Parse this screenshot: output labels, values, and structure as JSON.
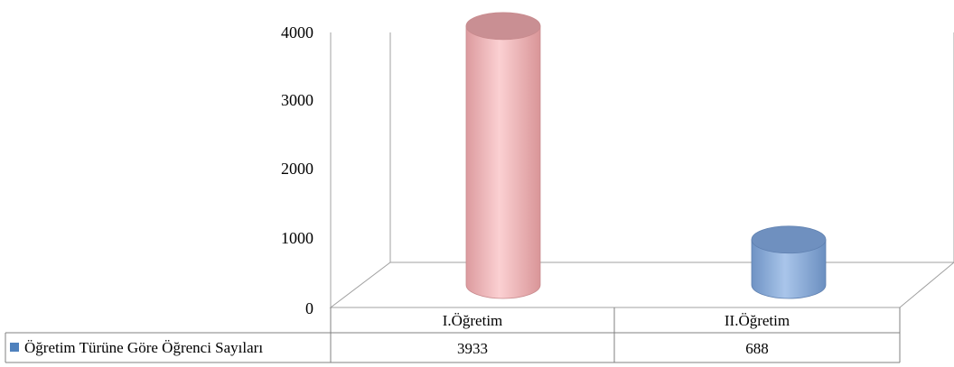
{
  "chart_data": {
    "type": "bar",
    "categories": [
      "I.Öğretim",
      "II.Öğretim"
    ],
    "series": [
      {
        "name": "Öğretim Türüne Göre Öğrenci Sayıları",
        "values": [
          3933,
          688
        ]
      }
    ],
    "yticks": [
      "0",
      "1000",
      "2000",
      "3000",
      "4000"
    ],
    "ylim": [
      0,
      4000
    ],
    "title": "",
    "xlabel": "",
    "ylabel": "",
    "grid": false,
    "legend": "data-table",
    "colors": [
      "#f2b8bb",
      "#8fb0d9"
    ],
    "legend_key_color": "#4f81bd"
  }
}
